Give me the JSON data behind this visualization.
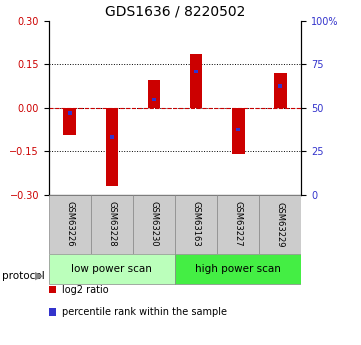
{
  "title": "GDS1636 / 8220502",
  "samples": [
    "GSM63226",
    "GSM63228",
    "GSM63230",
    "GSM63163",
    "GSM63227",
    "GSM63229"
  ],
  "log2_ratio": [
    -0.095,
    -0.27,
    0.095,
    0.185,
    -0.16,
    0.12
  ],
  "percentile_rank_value": [
    -0.018,
    -0.1,
    0.028,
    0.125,
    -0.075,
    0.075
  ],
  "ylim": [
    -0.3,
    0.3
  ],
  "yticks_left": [
    -0.3,
    -0.15,
    0.0,
    0.15,
    0.3
  ],
  "yticks_right_vals": [
    0,
    25,
    50,
    75,
    100
  ],
  "yticks_right_labels": [
    "0",
    "25",
    "50",
    "75",
    "100%"
  ],
  "bar_color_red": "#cc0000",
  "bar_color_blue": "#3333cc",
  "dashed_line_color": "#cc0000",
  "protocol_groups": [
    {
      "label": "low power scan",
      "color": "#bbffbb",
      "start": 0,
      "end": 3
    },
    {
      "label": "high power scan",
      "color": "#44ee44",
      "start": 3,
      "end": 6
    }
  ],
  "protocol_label": "protocol",
  "legend_items": [
    {
      "color": "#cc0000",
      "label": "log2 ratio"
    },
    {
      "color": "#3333cc",
      "label": "percentile rank within the sample"
    }
  ],
  "sample_box_color": "#cccccc",
  "title_fontsize": 10,
  "tick_fontsize": 7,
  "bar_width": 0.3,
  "blue_bar_width": 0.1,
  "blue_bar_height": 0.012
}
